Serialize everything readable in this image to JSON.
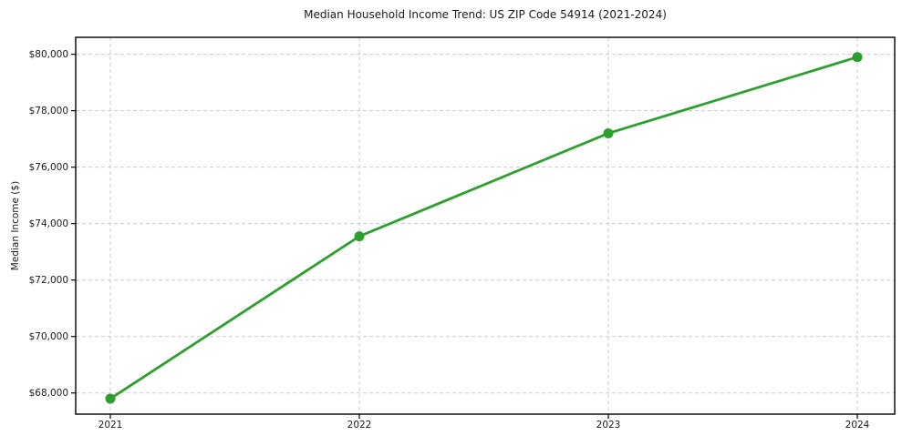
{
  "figure": {
    "background": "#ffffff"
  },
  "chart_data": {
    "type": "line",
    "title": "Median Household Income Trend: US ZIP Code 54914 (2021-2024)",
    "xlabel": "",
    "ylabel": "Median Income ($)",
    "categories": [
      "2021",
      "2022",
      "2023",
      "2024"
    ],
    "series": [
      {
        "values": [
          67800,
          73550,
          77200,
          79900
        ],
        "color": "#2ca02c",
        "line_width": 2.8,
        "marker": "circle",
        "marker_radius": 5.5
      }
    ],
    "ytick_values": [
      68000,
      70000,
      72000,
      74000,
      76000,
      78000,
      80000
    ],
    "ytick_labels": [
      "$68,000",
      "$70,000",
      "$72,000",
      "$74,000",
      "$76,000",
      "$78,000",
      "$80,000"
    ],
    "ylim": [
      67250,
      80600
    ],
    "grid": {
      "show": true,
      "style": "dashed",
      "color": "#cbcbcb"
    },
    "legend": "none",
    "spine_color": "#000000",
    "tick_color": "#000000",
    "text_color": "#1a1a1a"
  }
}
